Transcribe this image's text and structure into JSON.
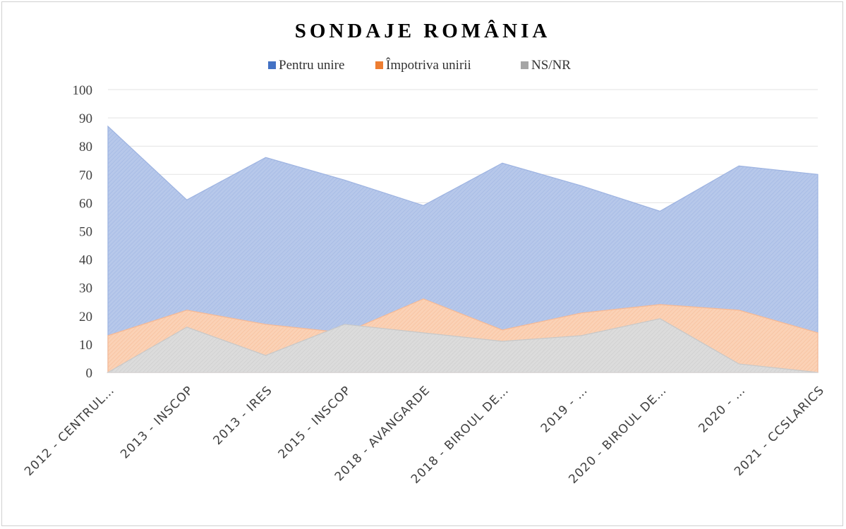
{
  "chart_data": {
    "type": "area",
    "stacked": false,
    "title": "SONDAJE ROMÂNIA",
    "xlabel": "",
    "ylabel": "",
    "ylim": [
      0,
      100
    ],
    "yticks": [
      0,
      10,
      20,
      30,
      40,
      50,
      60,
      70,
      80,
      90,
      100
    ],
    "grid": true,
    "legend_position": "top",
    "categories": [
      "2012 - CENTRUL…",
      "2013 - INSCOP",
      "2013 - IRES",
      "2015 - INSCOP",
      "2018 - AVANGARDE",
      "2018 - BIROUL DE…",
      "2019 - …",
      "2020 - BIROUL DE…",
      "2020 - …",
      "2021 - CCSLARICS"
    ],
    "series": [
      {
        "name": "Pentru unire",
        "color": "#4472c4",
        "values": [
          87,
          61,
          76,
          68,
          59,
          74,
          66,
          57,
          73,
          70
        ]
      },
      {
        "name": "Împotriva unirii",
        "color": "#ed7d31",
        "values": [
          13,
          22,
          17,
          14,
          26,
          15,
          21,
          24,
          22,
          14
        ]
      },
      {
        "name": "NS/NR",
        "color": "#a5a5a5",
        "values": [
          0,
          16,
          6,
          17,
          14,
          11,
          13,
          19,
          3,
          0
        ]
      }
    ]
  }
}
